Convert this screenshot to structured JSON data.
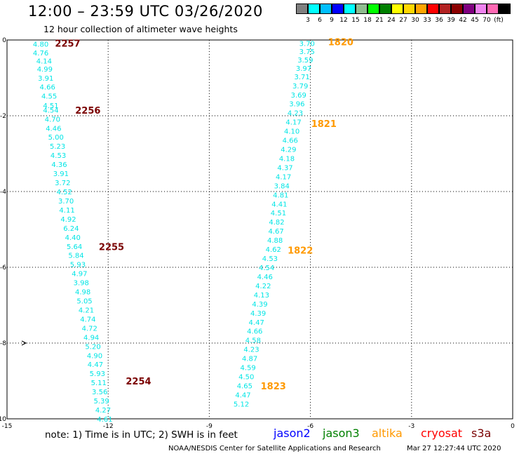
{
  "header": {
    "title": "12:00 – 23:59 UTC 03/26/2020",
    "subtitle": "12 hour collection of altimeter wave heights"
  },
  "colorbar": {
    "colors": [
      "#7f7f7f",
      "#00ffff",
      "#00bfff",
      "#0000ff",
      "#00ffff",
      "#8fbc8f",
      "#00ff00",
      "#008000",
      "#ffff00",
      "#ffd700",
      "#ffa500",
      "#ff0000",
      "#b22222",
      "#8b0000",
      "#800080",
      "#ee82ee",
      "#ff69b4",
      "#000000"
    ],
    "labels": [
      "3",
      "6",
      "9",
      "12",
      "15",
      "18",
      "21",
      "24",
      "27",
      "30",
      "33",
      "36",
      "39",
      "42",
      "45",
      "70",
      "(ft)"
    ]
  },
  "chart_data": {
    "type": "scatter",
    "xlim": [
      -15,
      0
    ],
    "ylim": [
      -10,
      0
    ],
    "x_ticks": [
      "-15",
      "-12",
      "-9",
      "-6",
      "-3",
      "0"
    ],
    "y_ticks": [
      "0",
      "-2",
      "-4",
      "-6",
      "-8",
      "-10"
    ],
    "grid": "dotted",
    "value_color": "#00e5e5",
    "tracks": [
      {
        "satellite": "s3a",
        "color": "#7a0000",
        "points": [
          [
            -14.0,
            -0.1,
            "4.80"
          ],
          [
            -14.0,
            -0.33,
            "4.76"
          ],
          [
            -13.9,
            -0.55,
            "4.14"
          ],
          [
            -13.88,
            -0.76,
            "4.99"
          ],
          [
            -13.85,
            -1.0,
            "3.91"
          ],
          [
            -13.8,
            -1.23,
            "4.66"
          ],
          [
            -13.75,
            -1.47,
            "4.55"
          ],
          [
            -13.7,
            -1.72,
            "4.51"
          ],
          [
            -13.7,
            -1.84,
            "4.54"
          ],
          [
            -13.65,
            -2.08,
            "4.70"
          ],
          [
            -13.62,
            -2.32,
            "4.46"
          ],
          [
            -13.55,
            -2.56,
            "5.00"
          ],
          [
            -13.5,
            -2.8,
            "5.23"
          ],
          [
            -13.48,
            -3.04,
            "4.53"
          ],
          [
            -13.45,
            -3.28,
            "4.36"
          ],
          [
            -13.4,
            -3.52,
            "3.91"
          ],
          [
            -13.35,
            -3.76,
            "3.72"
          ],
          [
            -13.3,
            -4.0,
            "4.52"
          ],
          [
            -13.25,
            -4.24,
            "3.70"
          ],
          [
            -13.22,
            -4.48,
            "4.11"
          ],
          [
            -13.18,
            -4.72,
            "4.92"
          ],
          [
            -13.1,
            -4.96,
            "6.24"
          ],
          [
            -13.05,
            -5.2,
            "4.40"
          ],
          [
            -13.0,
            -5.44,
            "5.64"
          ],
          [
            -12.95,
            -5.68,
            "5.84"
          ],
          [
            -12.9,
            -5.92,
            "5.93"
          ],
          [
            -12.85,
            -6.16,
            "4.97"
          ],
          [
            -12.8,
            -6.4,
            "3.98"
          ],
          [
            -12.75,
            -6.64,
            "4.98"
          ],
          [
            -12.7,
            -6.88,
            "5.05"
          ],
          [
            -12.65,
            -7.12,
            "4.21"
          ],
          [
            -12.6,
            -7.36,
            "4.74"
          ],
          [
            -12.55,
            -7.6,
            "4.72"
          ],
          [
            -12.5,
            -7.84,
            "4.94"
          ],
          [
            -12.45,
            -8.08,
            "5.20"
          ],
          [
            -12.4,
            -8.32,
            "4.90"
          ],
          [
            -12.38,
            -8.56,
            "4.47"
          ],
          [
            -12.32,
            -8.8,
            "5.93"
          ],
          [
            -12.28,
            -9.04,
            "5.11"
          ],
          [
            -12.25,
            -9.28,
            "3.56"
          ],
          [
            -12.2,
            -9.52,
            "5.39"
          ],
          [
            -12.15,
            -9.76,
            "4.27"
          ],
          [
            -12.1,
            -10.0,
            "4.61"
          ]
        ],
        "times": [
          [
            -13.2,
            -0.08,
            "2257"
          ],
          [
            -12.6,
            -1.85,
            "2256"
          ],
          [
            -11.9,
            -5.45,
            "2255"
          ],
          [
            -11.1,
            -9.0,
            "2254"
          ]
        ]
      },
      {
        "satellite": "altika",
        "color": "#ff9900",
        "points": [
          [
            -6.1,
            -0.08,
            "3.70"
          ],
          [
            -6.1,
            -0.3,
            "3.75"
          ],
          [
            -6.15,
            -0.52,
            "3.59"
          ],
          [
            -6.2,
            -0.74,
            "3.97"
          ],
          [
            -6.25,
            -0.96,
            "3.71"
          ],
          [
            -6.3,
            -1.2,
            "3.79"
          ],
          [
            -6.35,
            -1.44,
            "3.69"
          ],
          [
            -6.4,
            -1.68,
            "3.96"
          ],
          [
            -6.45,
            -1.92,
            "4.23"
          ],
          [
            -6.5,
            -2.16,
            "4.17"
          ],
          [
            -6.55,
            -2.4,
            "4.10"
          ],
          [
            -6.6,
            -2.64,
            "4.66"
          ],
          [
            -6.65,
            -2.88,
            "4.29"
          ],
          [
            -6.7,
            -3.12,
            "4.18"
          ],
          [
            -6.75,
            -3.36,
            "4.37"
          ],
          [
            -6.8,
            -3.6,
            "4.17"
          ],
          [
            -6.85,
            -3.84,
            "3.84"
          ],
          [
            -6.88,
            -4.08,
            "4.81"
          ],
          [
            -6.92,
            -4.32,
            "4.41"
          ],
          [
            -6.95,
            -4.56,
            "4.51"
          ],
          [
            -7.0,
            -4.8,
            "4.82"
          ],
          [
            -7.02,
            -5.04,
            "4.67"
          ],
          [
            -7.05,
            -5.28,
            "4.88"
          ],
          [
            -7.1,
            -5.52,
            "4.62"
          ],
          [
            -7.2,
            -5.76,
            "4.53"
          ],
          [
            -7.3,
            -6.0,
            "4.54"
          ],
          [
            -7.35,
            -6.24,
            "4.46"
          ],
          [
            -7.4,
            -6.48,
            "4.22"
          ],
          [
            -7.45,
            -6.72,
            "4.13"
          ],
          [
            -7.5,
            -6.96,
            "4.39"
          ],
          [
            -7.55,
            -7.2,
            "4.39"
          ],
          [
            -7.6,
            -7.44,
            "4.47"
          ],
          [
            -7.65,
            -7.68,
            "4.66"
          ],
          [
            -7.7,
            -7.92,
            "4.58"
          ],
          [
            -7.75,
            -8.16,
            "4.23"
          ],
          [
            -7.8,
            -8.4,
            "4.87"
          ],
          [
            -7.85,
            -8.64,
            "4.59"
          ],
          [
            -7.9,
            -8.88,
            "4.50"
          ],
          [
            -7.95,
            -9.12,
            "4.65"
          ],
          [
            -8.0,
            -9.36,
            "4.47"
          ],
          [
            -8.05,
            -9.6,
            "5.12"
          ]
        ],
        "times": [
          [
            -5.1,
            -0.05,
            "1820"
          ],
          [
            -5.6,
            -2.2,
            "1821"
          ],
          [
            -6.3,
            -5.55,
            "1822"
          ],
          [
            -7.1,
            -9.13,
            "1823"
          ]
        ]
      }
    ],
    "stray_markers": [
      [
        -14.5,
        -8.0
      ]
    ]
  },
  "footer": {
    "note": "note:  1) Time is in UTC;  2) SWH is in feet",
    "satellites": [
      {
        "name": "jason2",
        "color": "#0000ff"
      },
      {
        "name": "jason3",
        "color": "#008000"
      },
      {
        "name": "altika",
        "color": "#ff9900"
      },
      {
        "name": "cryosat",
        "color": "#ff0000"
      },
      {
        "name": "s3a",
        "color": "#7a0000"
      }
    ],
    "credit": "NOAA/NESDIS Center for Satellite Applications and Research",
    "timestamp": "Mar 27 12:27:44 UTC 2020"
  }
}
